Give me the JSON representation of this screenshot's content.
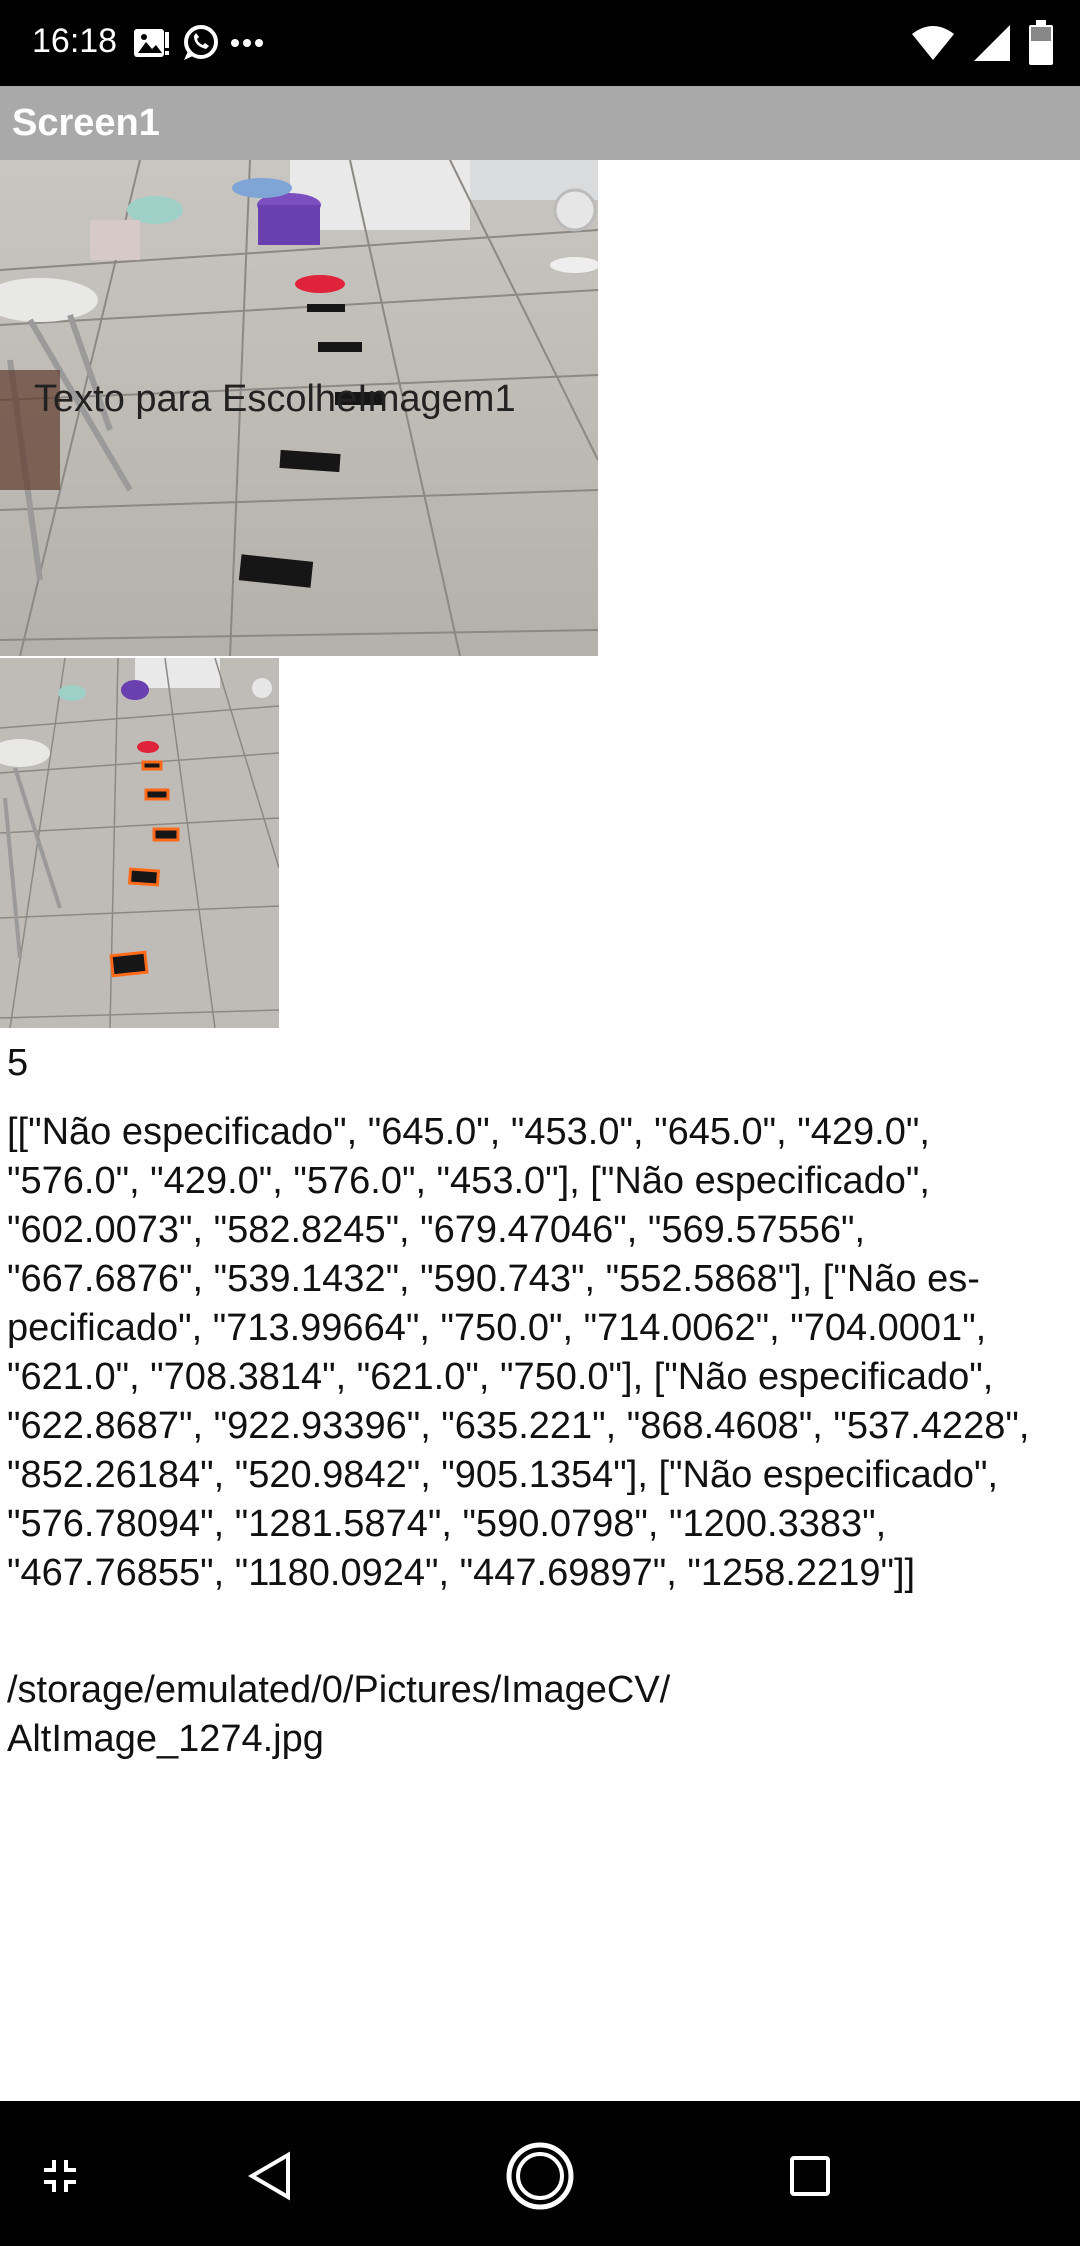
{
  "status_bar": {
    "time": "16:18",
    "left_icons": [
      "image-notification-icon",
      "whatsapp-icon",
      "more-dots-icon"
    ],
    "right_icons": [
      "wifi-icon",
      "signal-icon",
      "battery-icon"
    ]
  },
  "title_bar": {
    "title": "Screen1"
  },
  "image_picker": {
    "overlay_text": "Texto para EscolheImagem1"
  },
  "results": {
    "count": "5",
    "coordinates": "[[\"Não especificado\", \"645.0\", \"453.0\", \"645.0\", \"429.0\", \"576.0\", \"429.0\", \"576.0\", \"453.0\"], [\"Não especificado\", \"602.0073\", \"582.8245\", \"679.47046\", \"569.57556\", \"667.6876\", \"539.1432\", \"590.743\", \"552.5868\"], [\"Não es-pecificado\", \"713.99664\", \"750.0\", \"714.0062\", \"704.0001\", \"621.0\", \"708.3814\", \"621.0\", \"750.0\"], [\"Não especificado\", \"622.8687\", \"922.93396\", \"635.221\", \"868.4608\", \"537.4228\", \"852.26184\", \"520.9842\", \"905.1354\"], [\"Não especificado\", \"576.78094\", \"1281.5874\", \"590.0798\", \"1200.3383\", \"467.76855\", \"1180.0924\", \"447.69897\", \"1258.2219\"]]",
    "file_path_line1": "/storage/emulated/0/Pictures/ImageCV/",
    "file_path_line2": "AltImage_1274.jpg"
  },
  "nav_bar": {
    "buttons": [
      "collapse-icon",
      "back-icon",
      "home-icon",
      "recents-icon"
    ]
  }
}
